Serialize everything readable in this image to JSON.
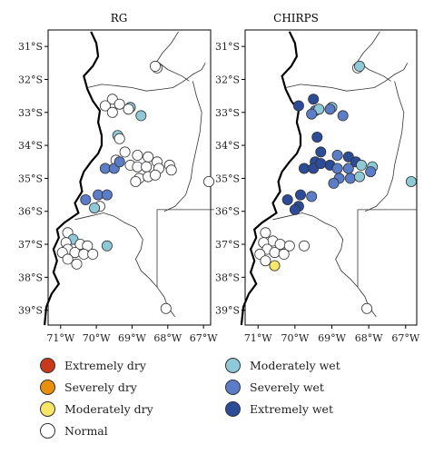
{
  "colors": {
    "Extremely dry": "#c8391b",
    "Severely dry": "#e8900e",
    "Moderately dry": "#f7e667",
    "Normal": "#ffffff",
    "Moderately wet": "#8ec9d8",
    "Severely wet": "#5b7cc6",
    "Extremely wet": "#2c4c98"
  },
  "legend": {
    "items": [
      "Extremely dry",
      "Severely dry",
      "Moderately dry",
      "Normal",
      "Moderately wet",
      "Severely wet",
      "Extremely wet"
    ]
  },
  "axes": {
    "lat_ticks": [
      "31°S",
      "32°S",
      "33°S",
      "34°S",
      "35°S",
      "36°S",
      "37°S",
      "38°S",
      "39°S"
    ],
    "lon_ticks": [
      "71°W",
      "70°W",
      "69°W",
      "68°W",
      "67°W"
    ]
  },
  "chart_data": [
    {
      "type": "scatter",
      "title": "RG",
      "points": [
        {
          "lon": -68.3,
          "lat": -31.65,
          "cat": "Normal"
        },
        {
          "lon": -68.35,
          "lat": -31.6,
          "cat": "Normal"
        },
        {
          "lon": -69.55,
          "lat": -32.6,
          "cat": "Normal"
        },
        {
          "lon": -69.75,
          "lat": -32.8,
          "cat": "Normal"
        },
        {
          "lon": -69.35,
          "lat": -32.75,
          "cat": "Normal"
        },
        {
          "lon": -69.05,
          "lat": -32.85,
          "cat": "Moderately wet"
        },
        {
          "lon": -69.1,
          "lat": -32.9,
          "cat": "Normal"
        },
        {
          "lon": -69.55,
          "lat": -33.0,
          "cat": "Normal"
        },
        {
          "lon": -68.75,
          "lat": -33.1,
          "cat": "Moderately wet"
        },
        {
          "lon": -69.4,
          "lat": -33.7,
          "cat": "Moderately wet"
        },
        {
          "lon": -69.35,
          "lat": -33.8,
          "cat": "Normal"
        },
        {
          "lon": -69.2,
          "lat": -34.2,
          "cat": "Normal"
        },
        {
          "lon": -68.85,
          "lat": -34.3,
          "cat": "Normal"
        },
        {
          "lon": -68.55,
          "lat": -34.35,
          "cat": "Normal"
        },
        {
          "lon": -68.3,
          "lat": -34.5,
          "cat": "Normal"
        },
        {
          "lon": -69.45,
          "lat": -34.45,
          "cat": "Normal"
        },
        {
          "lon": -69.05,
          "lat": -34.6,
          "cat": "Normal"
        },
        {
          "lon": -68.85,
          "lat": -34.65,
          "cat": "Normal"
        },
        {
          "lon": -68.6,
          "lat": -34.65,
          "cat": "Normal"
        },
        {
          "lon": -68.25,
          "lat": -34.7,
          "cat": "Normal"
        },
        {
          "lon": -67.95,
          "lat": -34.6,
          "cat": "Normal"
        },
        {
          "lon": -67.9,
          "lat": -34.75,
          "cat": "Normal"
        },
        {
          "lon": -69.75,
          "lat": -34.7,
          "cat": "Severely wet"
        },
        {
          "lon": -69.5,
          "lat": -34.7,
          "cat": "Severely wet"
        },
        {
          "lon": -69.35,
          "lat": -34.5,
          "cat": "Severely wet"
        },
        {
          "lon": -68.8,
          "lat": -35.0,
          "cat": "Normal"
        },
        {
          "lon": -68.55,
          "lat": -34.95,
          "cat": "Normal"
        },
        {
          "lon": -68.35,
          "lat": -34.9,
          "cat": "Normal"
        },
        {
          "lon": -68.9,
          "lat": -35.1,
          "cat": "Normal"
        },
        {
          "lon": -66.85,
          "lat": -35.1,
          "cat": "Normal"
        },
        {
          "lon": -70.3,
          "lat": -35.65,
          "cat": "Severely wet"
        },
        {
          "lon": -69.95,
          "lat": -35.5,
          "cat": "Severely wet"
        },
        {
          "lon": -69.7,
          "lat": -35.5,
          "cat": "Severely wet"
        },
        {
          "lon": -69.9,
          "lat": -35.85,
          "cat": "Normal"
        },
        {
          "lon": -70.05,
          "lat": -35.9,
          "cat": "Moderately wet"
        },
        {
          "lon": -70.8,
          "lat": -36.65,
          "cat": "Normal"
        },
        {
          "lon": -70.65,
          "lat": -36.85,
          "cat": "Moderately wet"
        },
        {
          "lon": -70.85,
          "lat": -36.95,
          "cat": "Normal"
        },
        {
          "lon": -70.45,
          "lat": -37.0,
          "cat": "Normal"
        },
        {
          "lon": -70.25,
          "lat": -37.05,
          "cat": "Normal"
        },
        {
          "lon": -69.7,
          "lat": -37.05,
          "cat": "Moderately wet"
        },
        {
          "lon": -70.8,
          "lat": -37.15,
          "cat": "Normal"
        },
        {
          "lon": -70.95,
          "lat": -37.25,
          "cat": "Normal"
        },
        {
          "lon": -70.6,
          "lat": -37.25,
          "cat": "Normal"
        },
        {
          "lon": -70.35,
          "lat": -37.3,
          "cat": "Normal"
        },
        {
          "lon": -70.1,
          "lat": -37.3,
          "cat": "Normal"
        },
        {
          "lon": -70.8,
          "lat": -37.45,
          "cat": "Normal"
        },
        {
          "lon": -70.55,
          "lat": -37.6,
          "cat": "Normal"
        },
        {
          "lon": -68.05,
          "lat": -38.95,
          "cat": "Normal"
        }
      ]
    },
    {
      "type": "scatter",
      "title": "CHIRPS",
      "points": [
        {
          "lon": -68.3,
          "lat": -31.65,
          "cat": "Normal"
        },
        {
          "lon": -68.25,
          "lat": -31.6,
          "cat": "Moderately wet"
        },
        {
          "lon": -69.5,
          "lat": -32.6,
          "cat": "Extremely wet"
        },
        {
          "lon": -69.9,
          "lat": -32.8,
          "cat": "Extremely wet"
        },
        {
          "lon": -69.45,
          "lat": -32.95,
          "cat": "Severely wet"
        },
        {
          "lon": -69.35,
          "lat": -32.9,
          "cat": "Moderately wet"
        },
        {
          "lon": -69.0,
          "lat": -32.85,
          "cat": "Moderately wet"
        },
        {
          "lon": -69.05,
          "lat": -32.9,
          "cat": "Severely wet"
        },
        {
          "lon": -69.55,
          "lat": -33.05,
          "cat": "Severely wet"
        },
        {
          "lon": -68.7,
          "lat": -33.1,
          "cat": "Severely wet"
        },
        {
          "lon": -69.4,
          "lat": -33.75,
          "cat": "Extremely wet"
        },
        {
          "lon": -69.3,
          "lat": -34.2,
          "cat": "Extremely wet"
        },
        {
          "lon": -68.85,
          "lat": -34.3,
          "cat": "Severely wet"
        },
        {
          "lon": -68.55,
          "lat": -34.35,
          "cat": "Extremely wet"
        },
        {
          "lon": -68.35,
          "lat": -34.5,
          "cat": "Extremely wet"
        },
        {
          "lon": -69.45,
          "lat": -34.5,
          "cat": "Extremely wet"
        },
        {
          "lon": -69.05,
          "lat": -34.6,
          "cat": "Extremely wet"
        },
        {
          "lon": -68.85,
          "lat": -34.7,
          "cat": "Severely wet"
        },
        {
          "lon": -68.55,
          "lat": -34.7,
          "cat": "Severely wet"
        },
        {
          "lon": -68.2,
          "lat": -34.6,
          "cat": "Moderately wet"
        },
        {
          "lon": -67.9,
          "lat": -34.65,
          "cat": "Moderately wet"
        },
        {
          "lon": -67.95,
          "lat": -34.8,
          "cat": "Severely wet"
        },
        {
          "lon": -69.75,
          "lat": -34.7,
          "cat": "Extremely wet"
        },
        {
          "lon": -69.5,
          "lat": -34.7,
          "cat": "Extremely wet"
        },
        {
          "lon": -69.3,
          "lat": -34.55,
          "cat": "Extremely wet"
        },
        {
          "lon": -68.8,
          "lat": -35.0,
          "cat": "Severely wet"
        },
        {
          "lon": -68.5,
          "lat": -35.0,
          "cat": "Severely wet"
        },
        {
          "lon": -68.25,
          "lat": -34.95,
          "cat": "Moderately wet"
        },
        {
          "lon": -68.95,
          "lat": -35.15,
          "cat": "Severely wet"
        },
        {
          "lon": -66.85,
          "lat": -35.1,
          "cat": "Moderately wet"
        },
        {
          "lon": -70.2,
          "lat": -35.65,
          "cat": "Extremely wet"
        },
        {
          "lon": -69.85,
          "lat": -35.5,
          "cat": "Extremely wet"
        },
        {
          "lon": -69.55,
          "lat": -35.55,
          "cat": "Severely wet"
        },
        {
          "lon": -69.9,
          "lat": -35.85,
          "cat": "Extremely wet"
        },
        {
          "lon": -70.0,
          "lat": -35.95,
          "cat": "Extremely wet"
        },
        {
          "lon": -70.8,
          "lat": -36.65,
          "cat": "Normal"
        },
        {
          "lon": -70.6,
          "lat": -36.9,
          "cat": "Normal"
        },
        {
          "lon": -70.85,
          "lat": -36.95,
          "cat": "Normal"
        },
        {
          "lon": -70.4,
          "lat": -37.0,
          "cat": "Normal"
        },
        {
          "lon": -70.15,
          "lat": -37.05,
          "cat": "Normal"
        },
        {
          "lon": -69.75,
          "lat": -37.05,
          "cat": "Normal"
        },
        {
          "lon": -70.75,
          "lat": -37.15,
          "cat": "Normal"
        },
        {
          "lon": -70.95,
          "lat": -37.3,
          "cat": "Normal"
        },
        {
          "lon": -70.55,
          "lat": -37.25,
          "cat": "Normal"
        },
        {
          "lon": -70.3,
          "lat": -37.3,
          "cat": "Normal"
        },
        {
          "lon": -70.8,
          "lat": -37.5,
          "cat": "Normal"
        },
        {
          "lon": -70.55,
          "lat": -37.65,
          "cat": "Moderately dry"
        },
        {
          "lon": -68.05,
          "lat": -38.95,
          "cat": "Normal"
        }
      ]
    }
  ]
}
